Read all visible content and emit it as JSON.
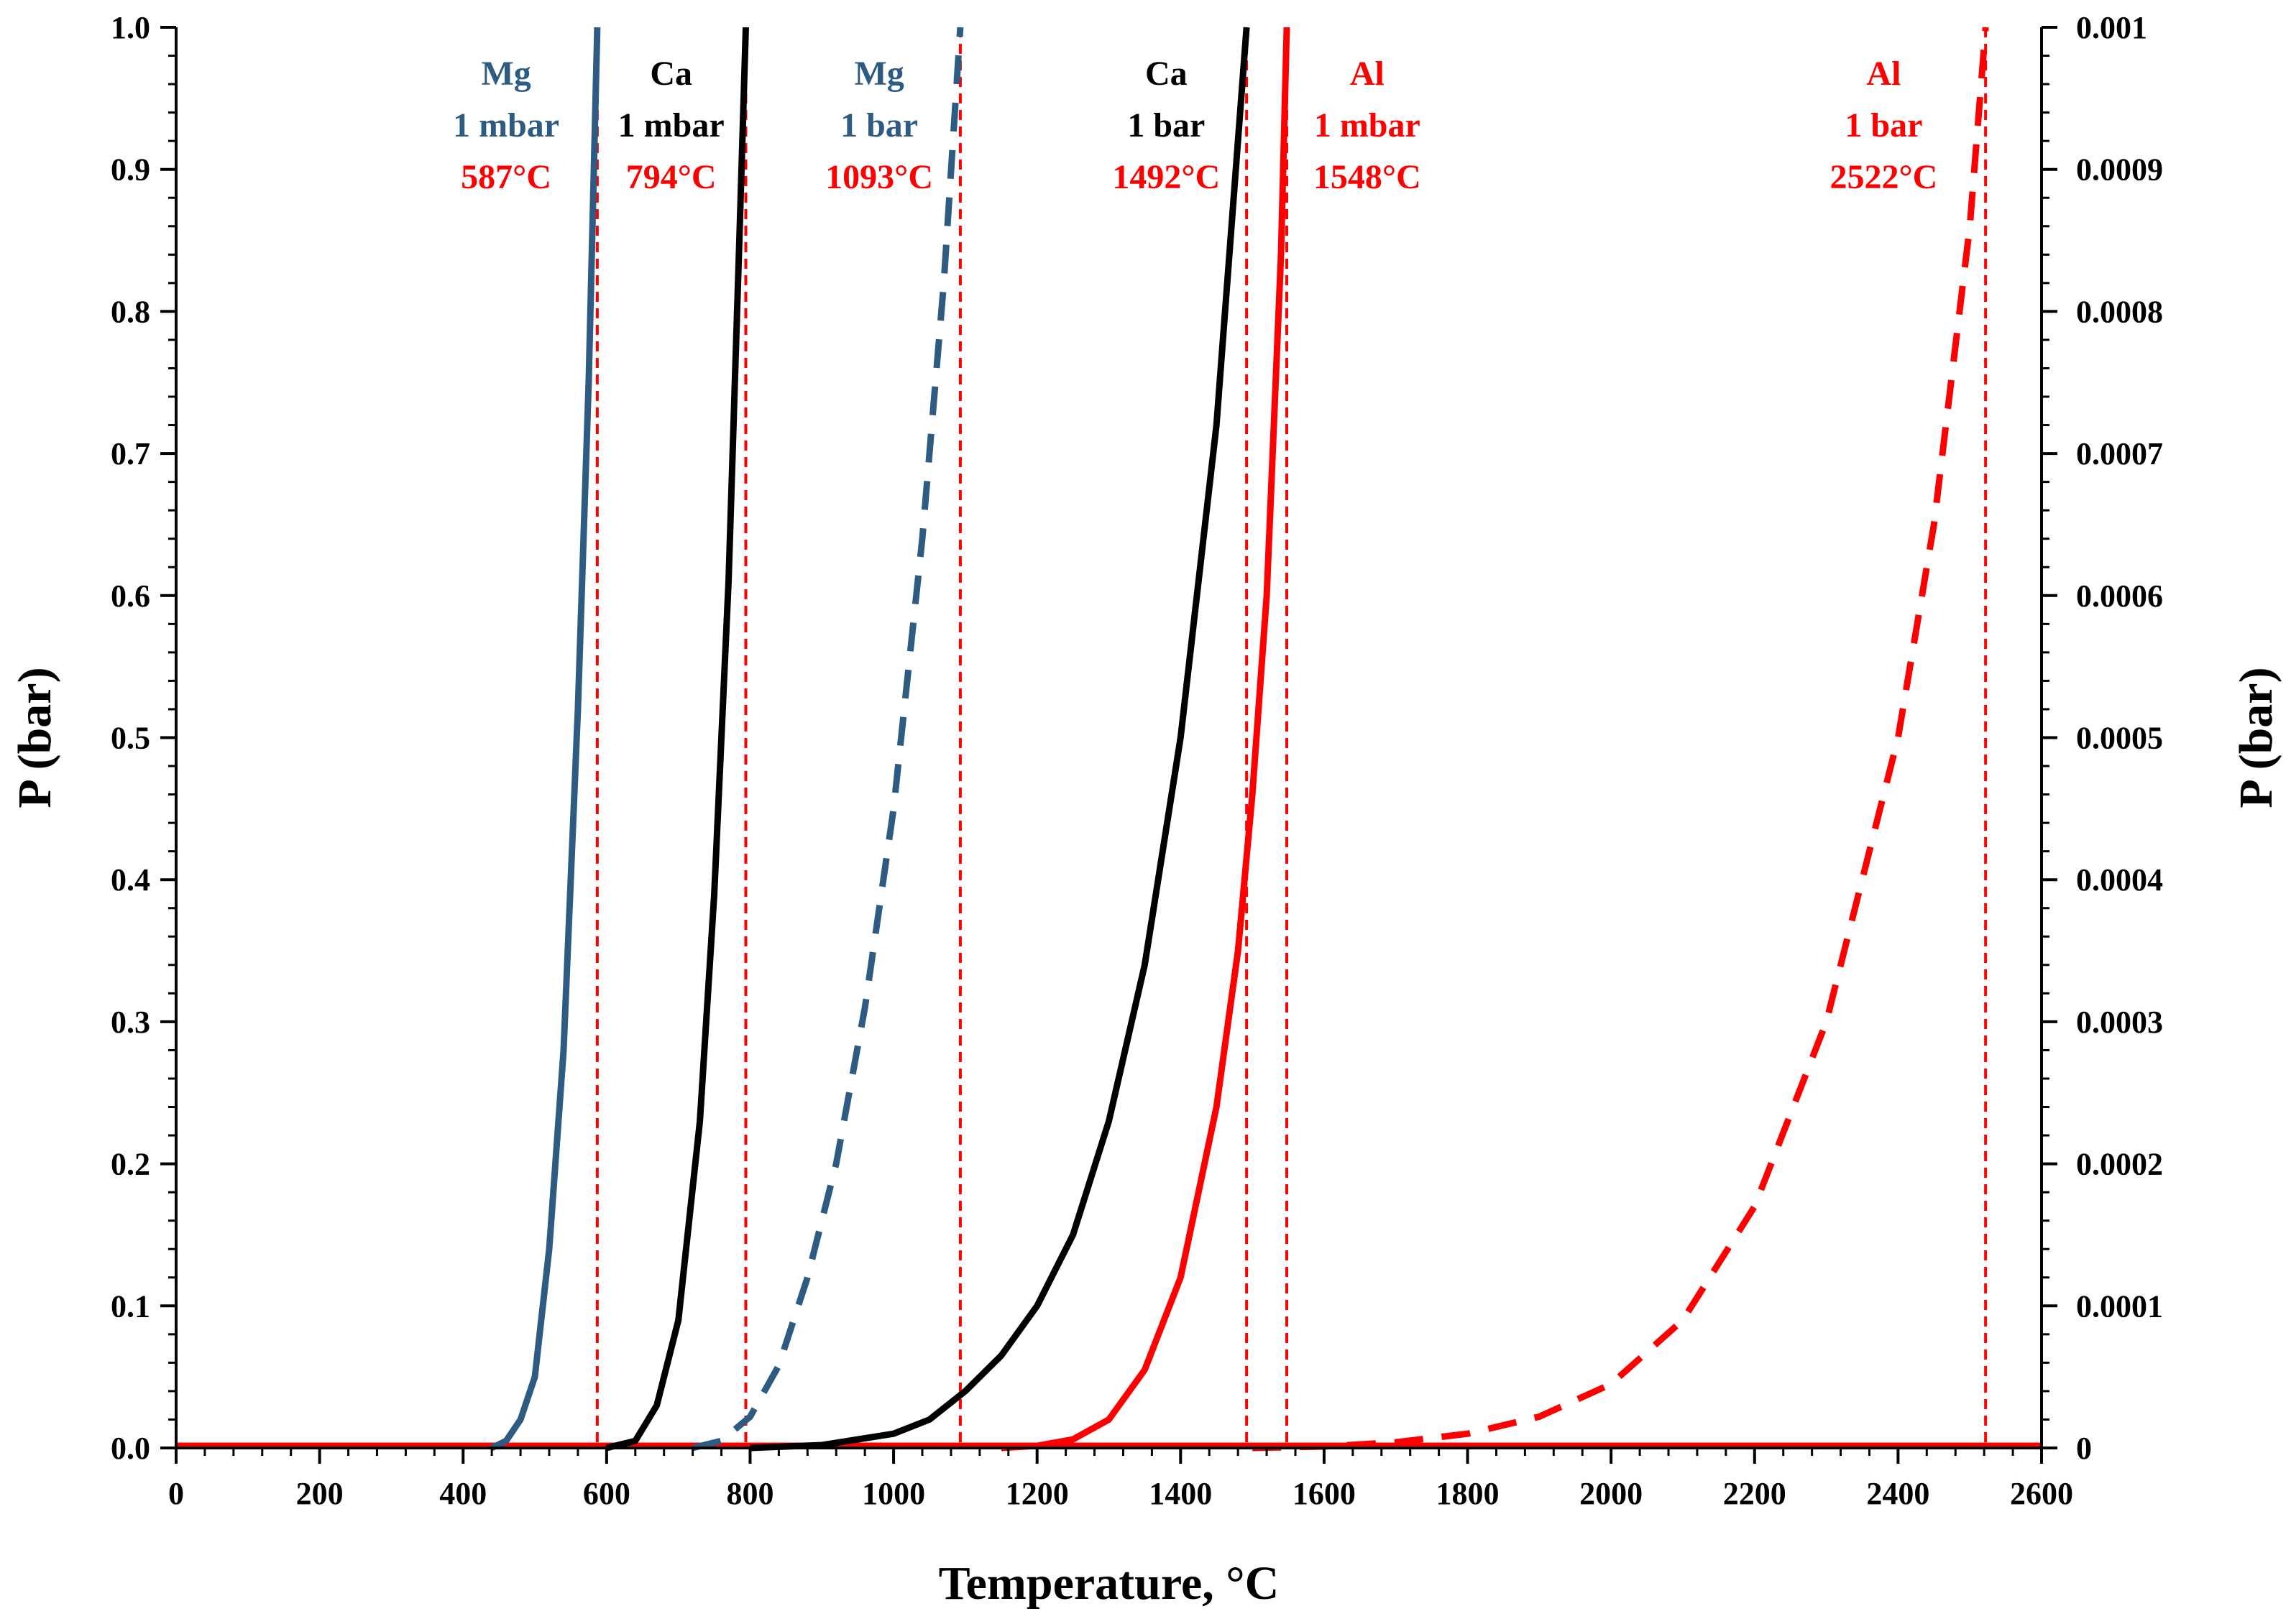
{
  "chart_data": {
    "type": "line",
    "title": "",
    "xlabel": "Temperature, °C",
    "ylabel_left": "P (bar)",
    "ylabel_right": "P (bar)",
    "xlim": [
      0,
      2600
    ],
    "ylim_left": [
      0,
      1.0
    ],
    "ylim_right": [
      0,
      0.001
    ],
    "x_ticks": [
      "0",
      "200",
      "400",
      "600",
      "800",
      "1000",
      "1200",
      "1400",
      "1600",
      "1800",
      "2000",
      "2200",
      "2400",
      "2600"
    ],
    "y_ticks_left": [
      "0.0",
      "0.1",
      "0.2",
      "0.3",
      "0.4",
      "0.5",
      "0.6",
      "0.7",
      "0.8",
      "0.9",
      "1.0"
    ],
    "y_ticks_right": [
      "0",
      "0.0001",
      "0.0002",
      "0.0003",
      "0.0004",
      "0.0005",
      "0.0006",
      "0.0007",
      "0.0008",
      "0.0009",
      "0.001"
    ],
    "grid": false,
    "legend": "none",
    "colors": {
      "mg": "#2e5b82",
      "ca": "#000000",
      "al": "#ff0000",
      "vline": "#ff0000"
    },
    "series": [
      {
        "element": "Mg",
        "pressure": "1 mbar",
        "axis": "right",
        "style": "solid",
        "color": "#2e5b82",
        "x": [
          440,
          460,
          480,
          500,
          520,
          540,
          560,
          575,
          587
        ],
        "y": [
          0,
          5e-06,
          2e-05,
          5e-05,
          0.00014,
          0.00028,
          0.00052,
          0.00075,
          0.001
        ]
      },
      {
        "element": "Ca",
        "pressure": "1 mbar",
        "axis": "right",
        "style": "solid",
        "color": "#000000",
        "x": [
          600,
          640,
          670,
          700,
          730,
          750,
          770,
          785,
          794
        ],
        "y": [
          0,
          5e-06,
          3e-05,
          9e-05,
          0.00023,
          0.00039,
          0.00061,
          0.00085,
          0.001
        ]
      },
      {
        "element": "Mg",
        "pressure": "1 bar",
        "axis": "left",
        "style": "dashed",
        "color": "#2e5b82",
        "x": [
          720,
          760,
          800,
          840,
          880,
          920,
          960,
          1000,
          1040,
          1070,
          1093
        ],
        "y": [
          0,
          0.005,
          0.022,
          0.058,
          0.12,
          0.2,
          0.31,
          0.45,
          0.64,
          0.82,
          1.0
        ]
      },
      {
        "element": "Ca",
        "pressure": "1 bar",
        "axis": "left",
        "style": "solid",
        "color": "#000000",
        "x": [
          800,
          900,
          1000,
          1050,
          1100,
          1150,
          1200,
          1250,
          1300,
          1350,
          1400,
          1450,
          1492
        ],
        "y": [
          0,
          0.002,
          0.01,
          0.02,
          0.04,
          0.065,
          0.1,
          0.15,
          0.23,
          0.34,
          0.5,
          0.72,
          1.0
        ]
      },
      {
        "element": "Al",
        "pressure": "1 mbar",
        "axis": "right",
        "style": "solid",
        "color": "#ff0000",
        "x": [
          1150,
          1200,
          1250,
          1300,
          1350,
          1400,
          1450,
          1480,
          1500,
          1520,
          1540,
          1548
        ],
        "y": [
          0,
          1.5e-06,
          6e-06,
          2e-05,
          5.5e-05,
          0.00012,
          0.00024,
          0.00035,
          0.00046,
          0.0006,
          0.00084,
          0.001
        ]
      },
      {
        "element": "Al",
        "pressure": "1 bar",
        "axis": "left",
        "style": "dashed",
        "color": "#ff0000",
        "x": [
          1500,
          1600,
          1700,
          1800,
          1900,
          2000,
          2100,
          2200,
          2300,
          2400,
          2450,
          2500,
          2522
        ],
        "y": [
          0,
          0.001,
          0.004,
          0.01,
          0.022,
          0.045,
          0.09,
          0.17,
          0.3,
          0.5,
          0.65,
          0.86,
          1.0
        ]
      }
    ],
    "vertical_lines": [
      587,
      794,
      1093,
      1492,
      1548,
      2522
    ],
    "annotations": [
      {
        "lines": [
          {
            "text": "Mg",
            "color": "#2e5b82"
          },
          {
            "text": "1 mbar",
            "color": "#2e5b82"
          },
          {
            "text": "587°C",
            "color": "#ff0000"
          }
        ],
        "x": 460
      },
      {
        "lines": [
          {
            "text": "Ca",
            "color": "#000000"
          },
          {
            "text": "1 mbar",
            "color": "#000000"
          },
          {
            "text": "794°C",
            "color": "#ff0000"
          }
        ],
        "x": 690
      },
      {
        "lines": [
          {
            "text": "Mg",
            "color": "#2e5b82"
          },
          {
            "text": "1 bar",
            "color": "#2e5b82"
          },
          {
            "text": "1093°C",
            "color": "#ff0000"
          }
        ],
        "x": 980
      },
      {
        "lines": [
          {
            "text": "Ca",
            "color": "#000000"
          },
          {
            "text": "1 bar",
            "color": "#000000"
          },
          {
            "text": "1492°C",
            "color": "#ff0000"
          }
        ],
        "x": 1380
      },
      {
        "lines": [
          {
            "text": "Al",
            "color": "#ff0000"
          },
          {
            "text": "1 mbar",
            "color": "#ff0000"
          },
          {
            "text": "1548°C",
            "color": "#ff0000"
          }
        ],
        "x": 1660
      },
      {
        "lines": [
          {
            "text": "Al",
            "color": "#ff0000"
          },
          {
            "text": "1 bar",
            "color": "#ff0000"
          },
          {
            "text": "2522°C",
            "color": "#ff0000"
          }
        ],
        "x": 2380
      }
    ]
  }
}
